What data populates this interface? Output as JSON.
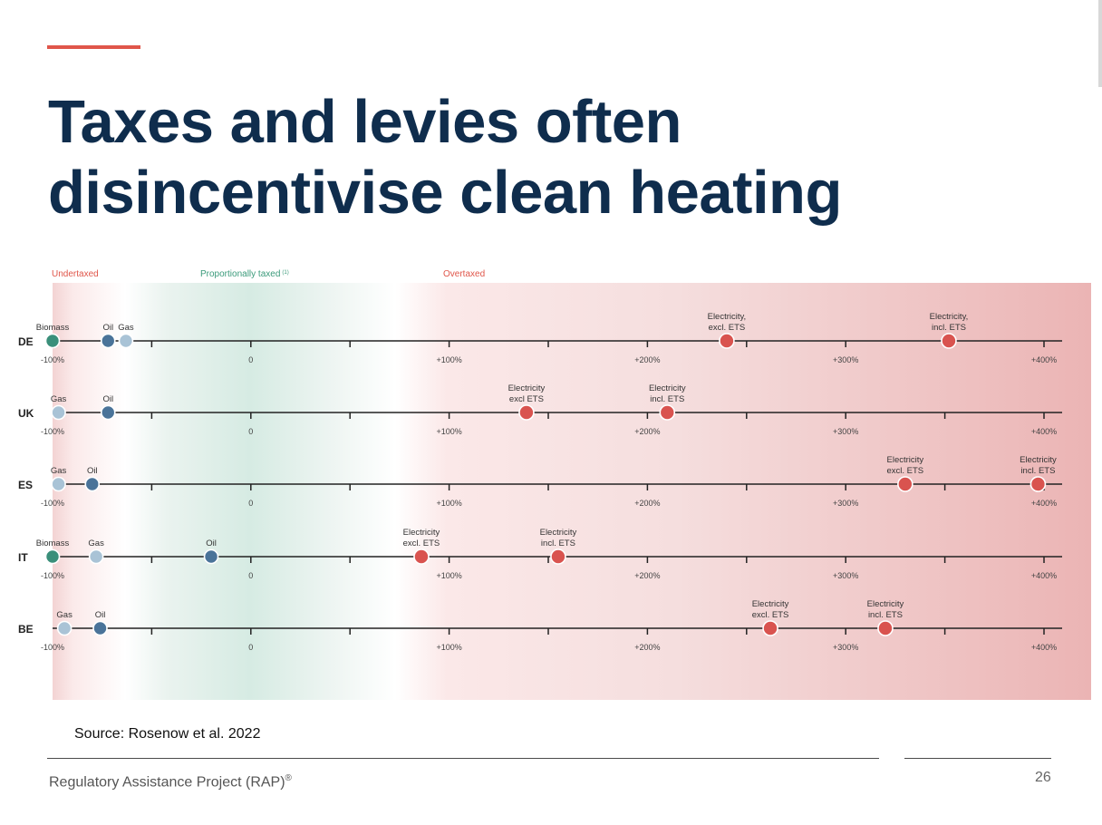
{
  "slide": {
    "title_line1": "Taxes and levies often",
    "title_line2": "disincentivise clean heating",
    "source": "Source: Rosenow et al. 2022",
    "footer_org": "Regulatory Assistance Project (RAP)",
    "footer_mark": "®",
    "page_number": "26",
    "accent_color": "#e0564a",
    "title_color": "#0f2d4d"
  },
  "chart_data": {
    "type": "scatter",
    "zones": [
      {
        "label": "Undertaxed",
        "color": "#e0564a"
      },
      {
        "label": "Proportionally taxed",
        "footnote": "(1)",
        "color": "#3a9a7a"
      },
      {
        "label": "Overtaxed",
        "color": "#e0564a"
      }
    ],
    "x_range": [
      -100,
      400
    ],
    "tick_labels": [
      "-100%",
      "0",
      "+100%",
      "+200%",
      "+300%",
      "+400%"
    ],
    "tick_values": [
      -100,
      0,
      100,
      200,
      300,
      400
    ],
    "colors": {
      "biomass": "#3a8f7a",
      "oil": "#4a7399",
      "gas": "#a9c3d6",
      "electricity": "#d9534f"
    },
    "rows": [
      {
        "country": "DE",
        "points": [
          {
            "label": "Biomass",
            "lines": [
              "Biomass"
            ],
            "value": -100,
            "kind": "biomass"
          },
          {
            "label": "Oil",
            "lines": [
              "Oil"
            ],
            "value": -72,
            "kind": "oil"
          },
          {
            "label": "Gas",
            "lines": [
              "Gas"
            ],
            "value": -63,
            "kind": "gas"
          },
          {
            "label": "Electricity, excl. ETS",
            "lines": [
              "Electricity,",
              "excl. ETS"
            ],
            "value": 240,
            "kind": "electricity"
          },
          {
            "label": "Electricity, incl. ETS",
            "lines": [
              "Electricity,",
              "incl. ETS"
            ],
            "value": 352,
            "kind": "electricity"
          }
        ]
      },
      {
        "country": "UK",
        "points": [
          {
            "label": "Gas",
            "lines": [
              "Gas"
            ],
            "value": -97,
            "kind": "gas"
          },
          {
            "label": "Oil",
            "lines": [
              "Oil"
            ],
            "value": -72,
            "kind": "oil"
          },
          {
            "label": "Electricity excl ETS",
            "lines": [
              "Electricity",
              "excl ETS"
            ],
            "value": 139,
            "kind": "electricity"
          },
          {
            "label": "Electricity incl. ETS",
            "lines": [
              "Electricity",
              "incl. ETS"
            ],
            "value": 210,
            "kind": "electricity"
          }
        ]
      },
      {
        "country": "ES",
        "points": [
          {
            "label": "Gas",
            "lines": [
              "Gas"
            ],
            "value": -97,
            "kind": "gas"
          },
          {
            "label": "Oil",
            "lines": [
              "Oil"
            ],
            "value": -80,
            "kind": "oil"
          },
          {
            "label": "Electricity excl. ETS",
            "lines": [
              "Electricity",
              "excl. ETS"
            ],
            "value": 330,
            "kind": "electricity"
          },
          {
            "label": "Electricity incl. ETS",
            "lines": [
              "Electricity",
              "incl. ETS"
            ],
            "value": 397,
            "kind": "electricity"
          }
        ]
      },
      {
        "country": "IT",
        "points": [
          {
            "label": "Biomass",
            "lines": [
              "Biomass"
            ],
            "value": -100,
            "kind": "biomass"
          },
          {
            "label": "Gas",
            "lines": [
              "Gas"
            ],
            "value": -78,
            "kind": "gas"
          },
          {
            "label": "Oil",
            "lines": [
              "Oil"
            ],
            "value": -20,
            "kind": "oil"
          },
          {
            "label": "Electricity excl. ETS",
            "lines": [
              "Electricity",
              "excl. ETS"
            ],
            "value": 86,
            "kind": "electricity"
          },
          {
            "label": "Electricity incl. ETS",
            "lines": [
              "Electricity",
              "incl. ETS"
            ],
            "value": 155,
            "kind": "electricity"
          }
        ]
      },
      {
        "country": "BE",
        "points": [
          {
            "label": "Gas",
            "lines": [
              "Gas"
            ],
            "value": -94,
            "kind": "gas"
          },
          {
            "label": "Oil",
            "lines": [
              "Oil"
            ],
            "value": -76,
            "kind": "oil"
          },
          {
            "label": "Electricity excl. ETS",
            "lines": [
              "Electricity",
              "excl. ETS"
            ],
            "value": 262,
            "kind": "electricity"
          },
          {
            "label": "Electricity incl. ETS",
            "lines": [
              "Electricity",
              "incl. ETS"
            ],
            "value": 320,
            "kind": "electricity"
          }
        ]
      }
    ]
  }
}
